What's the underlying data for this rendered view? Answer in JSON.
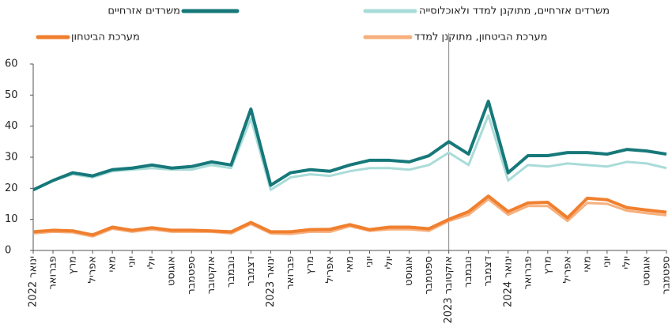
{
  "chart_data": {
    "type": "line",
    "categories": [
      "ינואר 2022",
      "פברואר",
      "מרץ",
      "אפריל",
      "מאי",
      "יוני",
      "יולי",
      "אוגוסט",
      "ספטמבר",
      "אוקטובר",
      "נובמבר",
      "דצמבר",
      "ינואר 2023",
      "פברואר",
      "מרץ",
      "אפריל",
      "מאי",
      "יוני",
      "יולי",
      "אוגוסט",
      "ספטמבר",
      "אוקטובר 2023",
      "נובמבר",
      "דצמבר",
      "ינואר 2024",
      "פברואר",
      "מרץ",
      "אפריל",
      "מאי",
      "יוני",
      "יולי",
      "אוגוסט",
      "ספטמבר"
    ],
    "series": [
      {
        "name": "משרדים אזרחיים",
        "color": "#17787a",
        "values": [
          19.5,
          22.5,
          25,
          24,
          26,
          26.5,
          27.5,
          26.5,
          27,
          28.5,
          27.5,
          45.5,
          21,
          25,
          26,
          25.5,
          27.5,
          29,
          29,
          28.5,
          30.5,
          35,
          31,
          48,
          25,
          30.5,
          30.5,
          31.5,
          31.5,
          31,
          32.5,
          32,
          31
        ]
      },
      {
        "name": "משרדים אזרחיים, מתוקנן למדד ולאוכלוסייה",
        "color": "#a9dcd8",
        "values": [
          19.5,
          22.5,
          24.5,
          23.5,
          25.5,
          26,
          26.5,
          26,
          26,
          27.5,
          26.5,
          42.5,
          19.5,
          23.5,
          24.5,
          24,
          25.5,
          26.5,
          26.5,
          26,
          27.5,
          31.5,
          27.5,
          43.5,
          22.5,
          27.5,
          27,
          28,
          27.5,
          27,
          28.5,
          28,
          26.5
        ]
      },
      {
        "name": "מערכת הביטחון",
        "color": "#f07f2e",
        "values": [
          6,
          6.5,
          6.3,
          5,
          7.5,
          6.5,
          7.3,
          6.5,
          6.5,
          6.3,
          6,
          9,
          6,
          6,
          6.7,
          6.8,
          8.3,
          6.7,
          7.5,
          7.5,
          7,
          10,
          12.5,
          17.5,
          12.5,
          15.3,
          15.5,
          10.5,
          16.8,
          16.3,
          13.8,
          13,
          12.3
        ]
      },
      {
        "name": "מערכת הביטחון, מתוקנן למדד",
        "color": "#f6b07e",
        "values": [
          5.5,
          6,
          5.8,
          4.5,
          7,
          6,
          6.8,
          6,
          6,
          6,
          5.5,
          8.5,
          5.5,
          5.3,
          6,
          6,
          7.8,
          6.3,
          6.8,
          6.8,
          6.3,
          9.5,
          11.5,
          16.5,
          11.5,
          14.3,
          14.3,
          9.5,
          15.3,
          15,
          12.8,
          12,
          11.3
        ]
      }
    ],
    "ylim": [
      0,
      60
    ],
    "yticks": [
      0,
      10,
      20,
      30,
      40,
      50,
      60
    ],
    "grid": false
  }
}
